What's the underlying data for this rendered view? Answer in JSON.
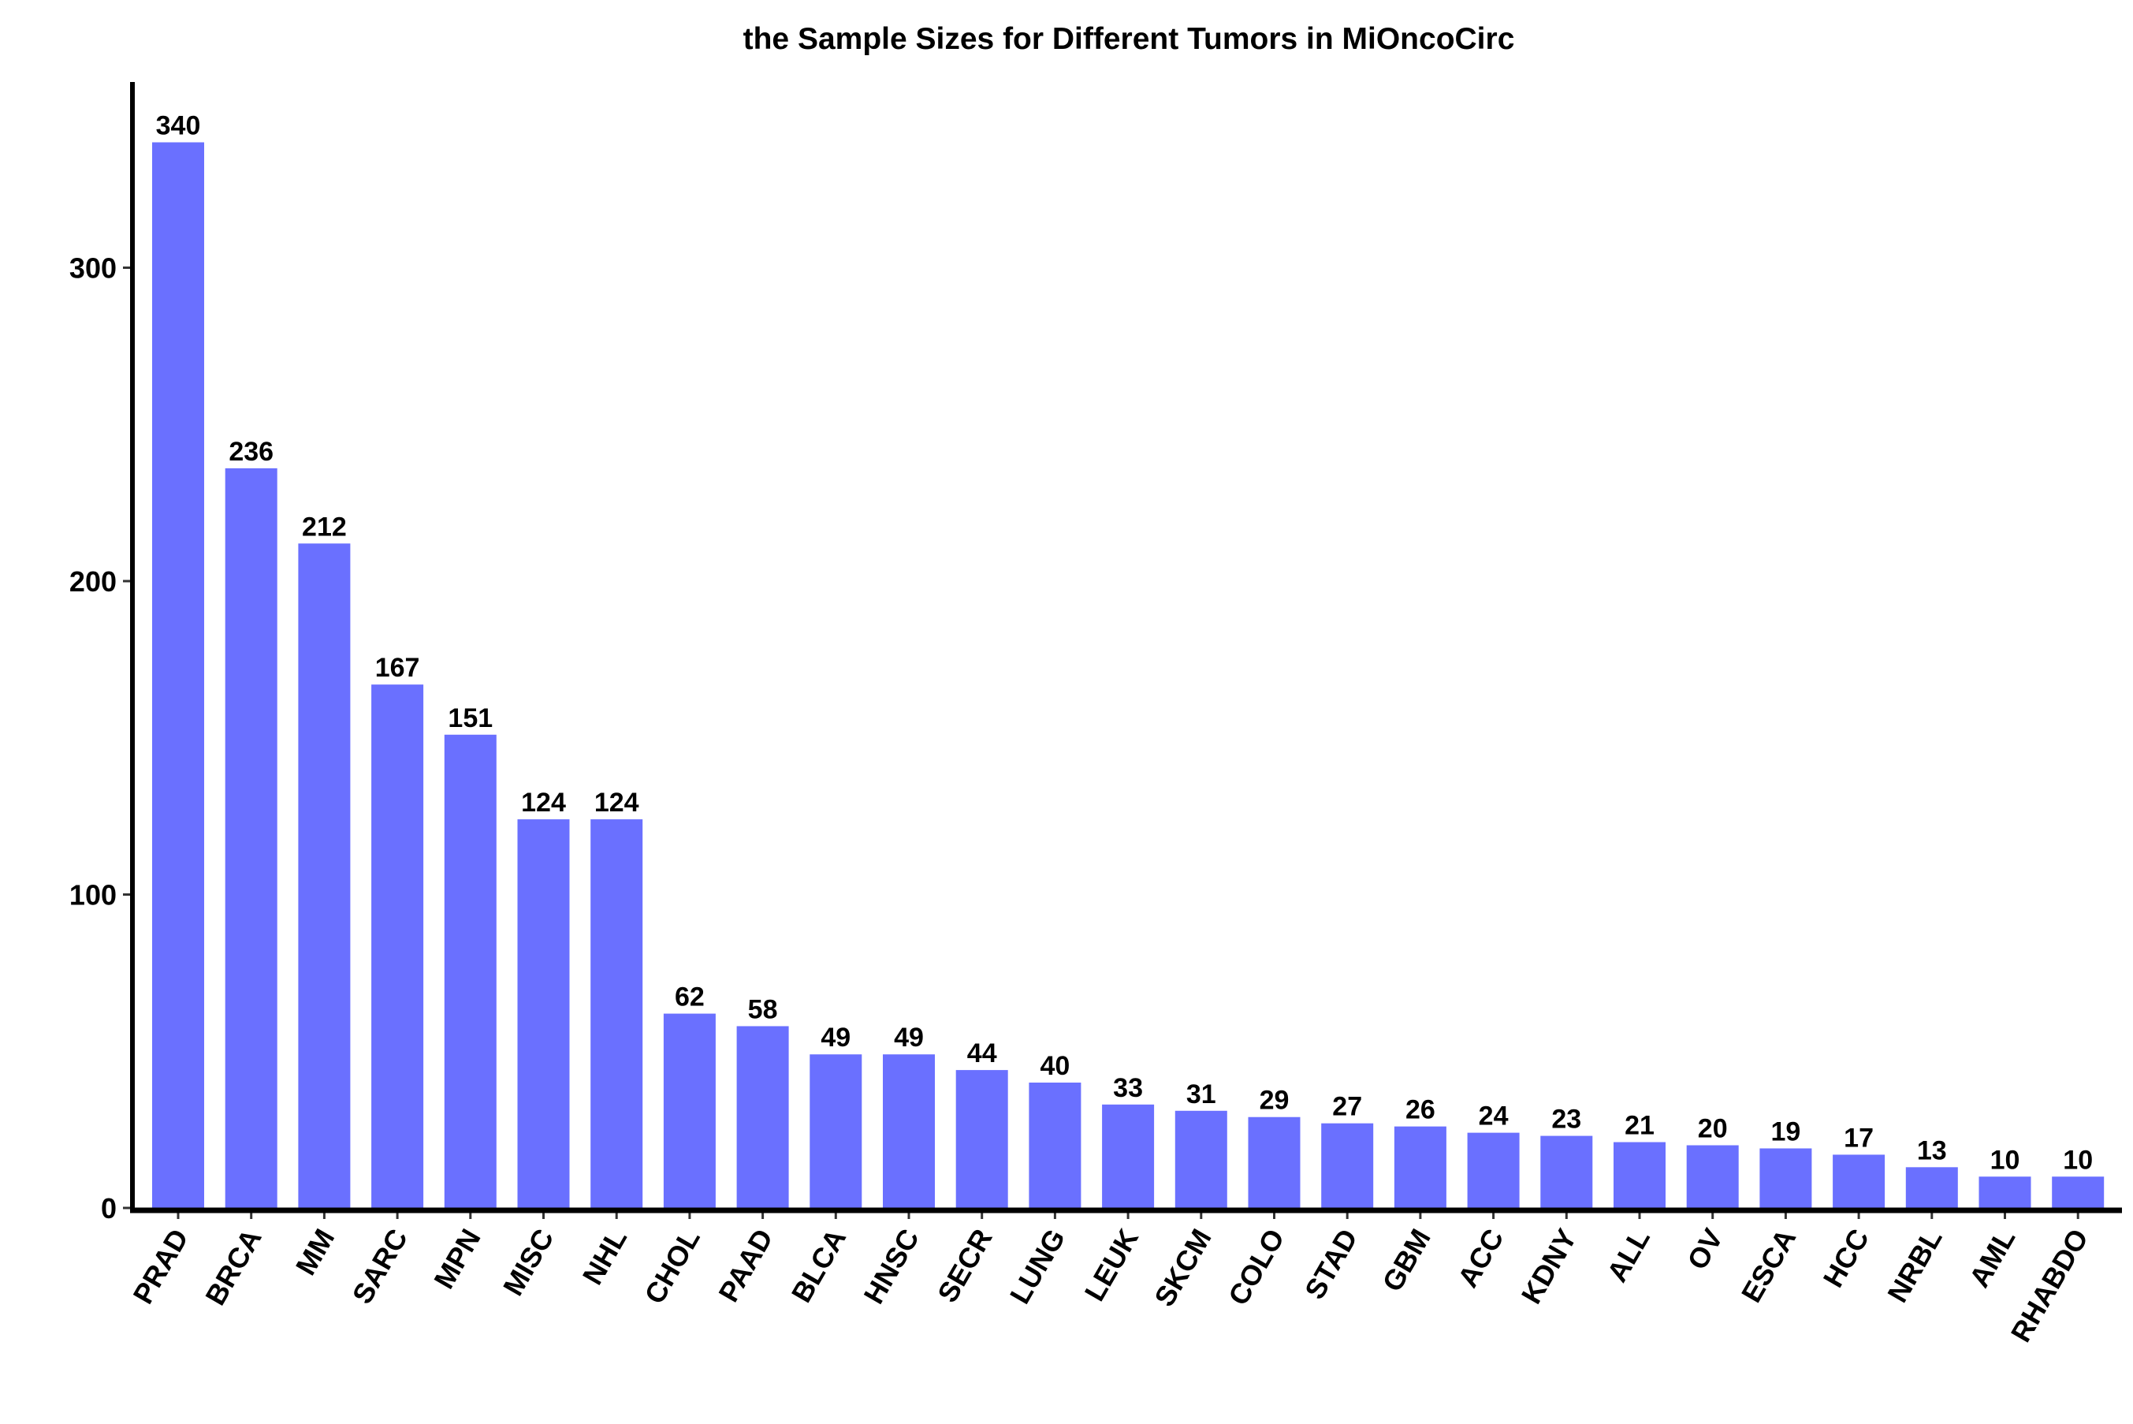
{
  "chart_data": {
    "type": "bar",
    "title": "the Sample Sizes for Different Tumors in MiOncoCirc",
    "xlabel": "",
    "ylabel": "",
    "categories": [
      "PRAD",
      "BRCA",
      "MM",
      "SARC",
      "MPN",
      "MISC",
      "NHL",
      "CHOL",
      "PAAD",
      "BLCA",
      "HNSC",
      "SECR",
      "LUNG",
      "LEUK",
      "SKCM",
      "COLO",
      "STAD",
      "GBM",
      "ACC",
      "KDNY",
      "ALL",
      "OV",
      "ESCA",
      "HCC",
      "NRBL",
      "AML",
      "RHABDO"
    ],
    "values": [
      340,
      236,
      212,
      167,
      151,
      124,
      124,
      62,
      58,
      49,
      49,
      44,
      40,
      33,
      31,
      29,
      27,
      26,
      24,
      23,
      21,
      20,
      19,
      17,
      13,
      10,
      10
    ],
    "ylim": [
      0,
      360
    ],
    "yticks": [
      0,
      100,
      200,
      300
    ],
    "grid": false,
    "bar_color": "#6a70ff"
  }
}
